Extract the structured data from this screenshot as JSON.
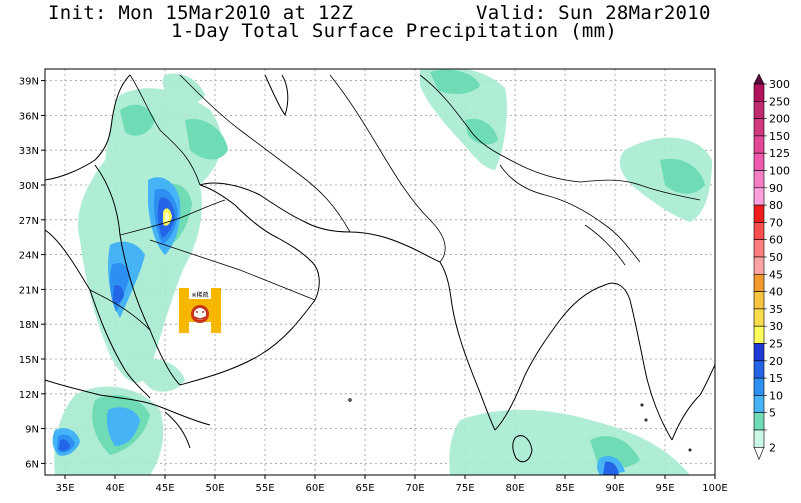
{
  "header": {
    "init": "Init: Mon 15Mar2010 at 12Z",
    "valid": "Valid: Sun 28Mar2010",
    "title": "1-Day Total Surface Precipitation (mm)"
  },
  "map": {
    "lon_range": [
      33,
      100
    ],
    "lat_range": [
      5,
      40
    ],
    "lat_ticks": [
      "39N",
      "36N",
      "33N",
      "30N",
      "27N",
      "24N",
      "21N",
      "18N",
      "15N",
      "12N",
      "9N",
      "6N"
    ],
    "lon_ticks": [
      "35E",
      "40E",
      "45E",
      "50E",
      "55E",
      "60E",
      "65E",
      "70E",
      "75E",
      "80E",
      "85E",
      "90E",
      "95E",
      "100E"
    ]
  },
  "logo": {
    "caption": "※稀疏"
  },
  "colorbar": {
    "levels": [
      "300",
      "250",
      "200",
      "150",
      "125",
      "100",
      "90",
      "80",
      "70",
      "60",
      "50",
      "45",
      "40",
      "35",
      "30",
      "25",
      "20",
      "15",
      "10",
      "5",
      "2"
    ],
    "colors": [
      "#b1125c",
      "#c02a6e",
      "#d2387e",
      "#e24896",
      "#f05aae",
      "#f57ec6",
      "#fe9fde",
      "#f21d1d",
      "#fd4d4d",
      "#fb7d7d",
      "#fba2a2",
      "#f39a2d",
      "#f6c43f",
      "#fadd4c",
      "#fcfc5a",
      "#1c3ad4",
      "#2365e6",
      "#2e8ff3",
      "#45b3f5",
      "#6fdcb6",
      "#c8f7e3"
    ],
    "top_color": "#5a0b3c",
    "bottom_color": "#ffffff"
  }
}
